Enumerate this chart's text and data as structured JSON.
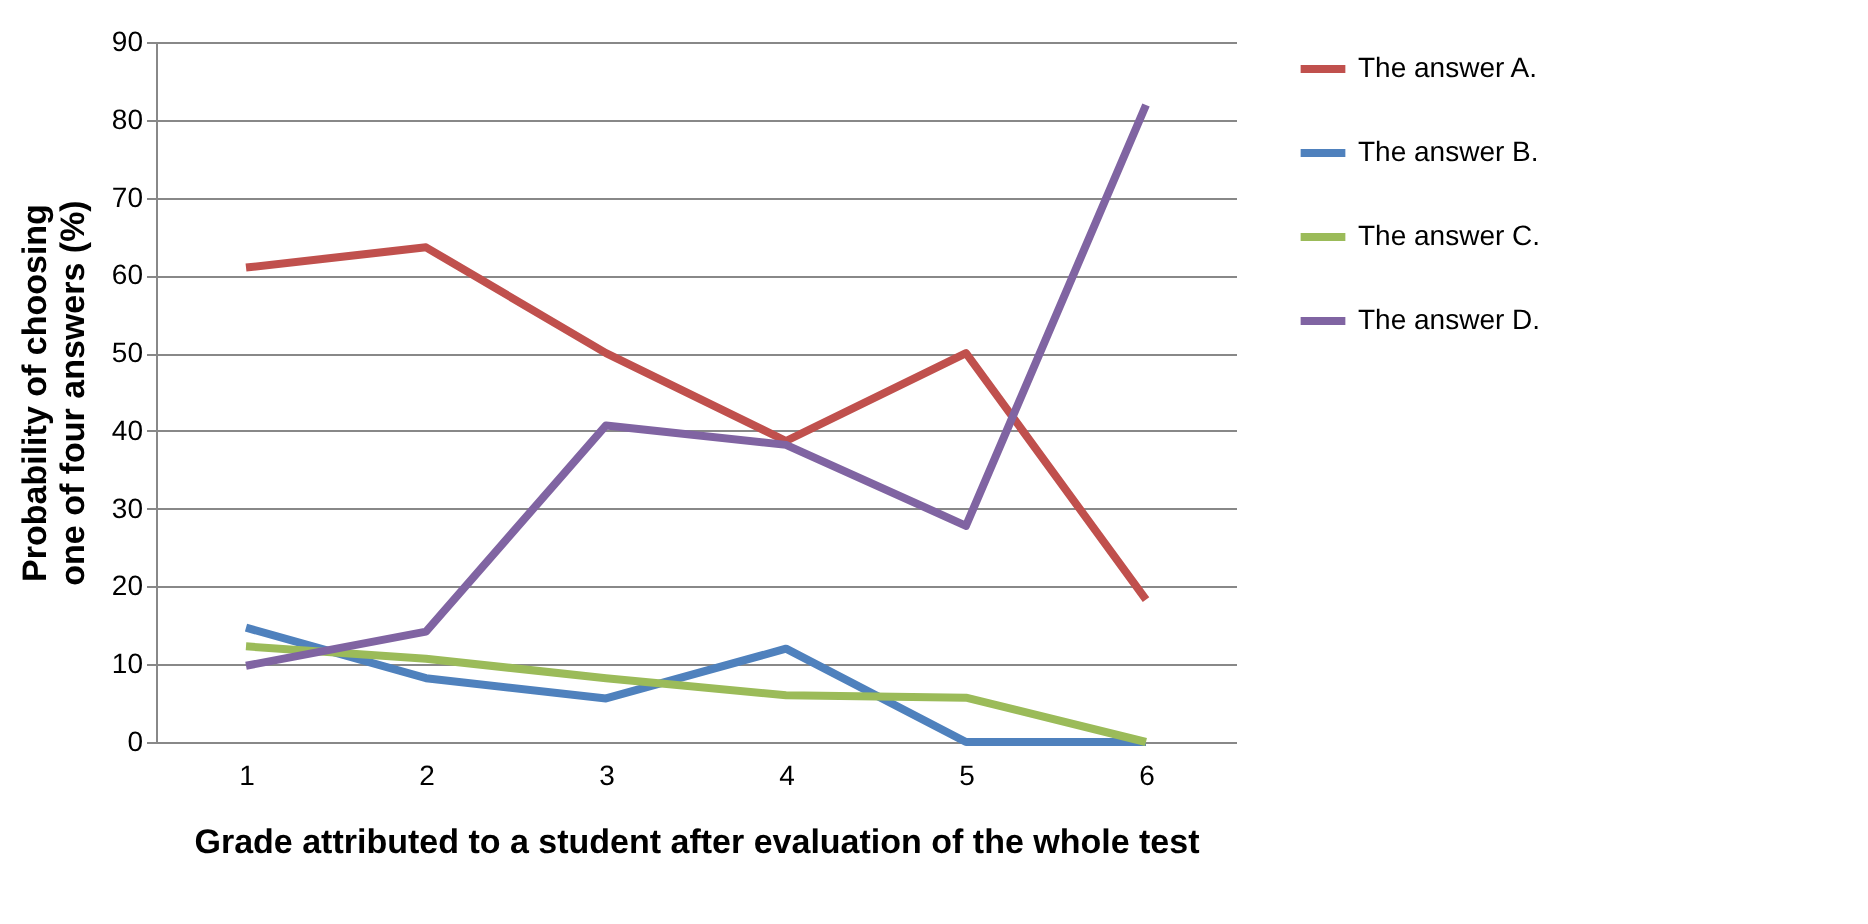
{
  "chart_data": {
    "type": "line",
    "xlabel": "Grade attributed to a student after evaluation of the whole test",
    "ylabel": "Probability of choosing one of  four answers  (%)",
    "categories": [
      "1",
      "2",
      "3",
      "4",
      "5",
      "6"
    ],
    "series": [
      {
        "name": "The answer A.",
        "color": "#c0504d",
        "values": [
          61,
          63.6,
          50,
          38.7,
          50,
          18.3
        ]
      },
      {
        "name": "The answer B.",
        "color": "#4f81bd",
        "values": [
          14.7,
          8.2,
          5.6,
          12,
          0,
          0
        ]
      },
      {
        "name": "The answer C.",
        "color": "#9bbb59",
        "values": [
          12.3,
          10.7,
          8.2,
          6,
          5.7,
          0
        ]
      },
      {
        "name": "The answer D.",
        "color": "#8064a2",
        "values": [
          9.8,
          14.2,
          40.7,
          38.2,
          27.8,
          81.9
        ]
      }
    ],
    "ylim": [
      0,
      90
    ],
    "yticks": [
      0,
      10,
      20,
      30,
      40,
      50,
      60,
      70,
      80,
      90
    ],
    "grid": "y",
    "legend": "right",
    "marker": "none",
    "line_style": "solid"
  }
}
